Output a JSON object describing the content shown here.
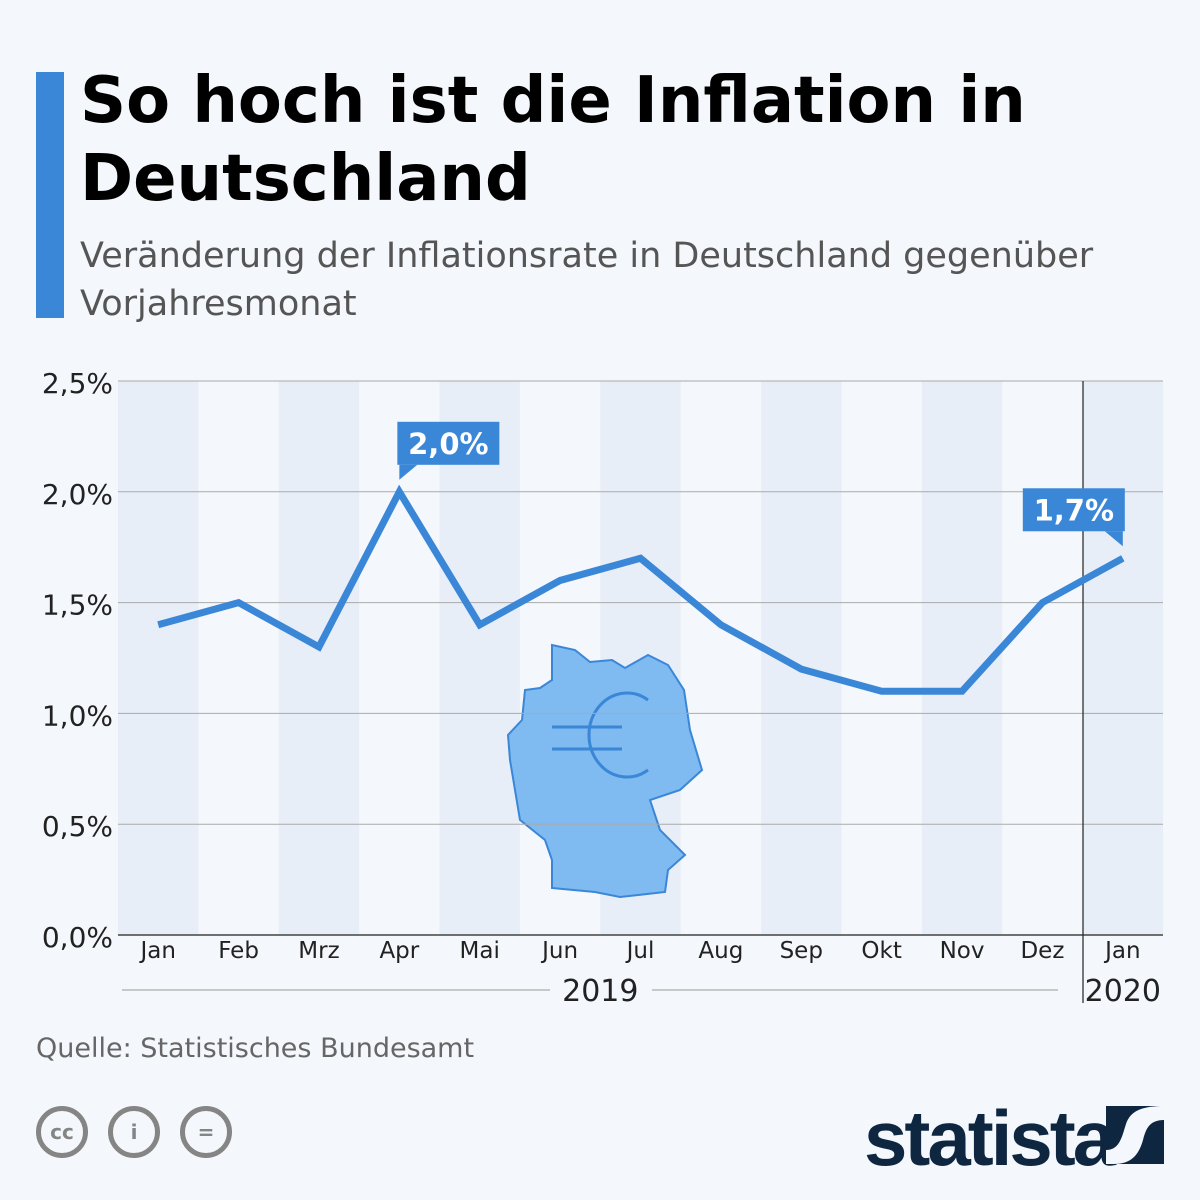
{
  "header": {
    "title": "So hoch ist die Inflation in Deutschland",
    "subtitle": "Veränderung der Inflationsrate in Deutschland gegenüber Vorjahresmonat"
  },
  "chart_data": {
    "type": "line",
    "title": "So hoch ist die Inflation in Deutschland",
    "categories": [
      "Jan",
      "Feb",
      "Mrz",
      "Apr",
      "Mai",
      "Jun",
      "Jul",
      "Aug",
      "Sep",
      "Okt",
      "Nov",
      "Dez",
      "Jan"
    ],
    "years": [
      {
        "label": "2019",
        "from": 0,
        "to": 11
      },
      {
        "label": "2020",
        "from": 12,
        "to": 12
      }
    ],
    "values": [
      1.4,
      1.5,
      1.3,
      2.0,
      1.4,
      1.6,
      1.7,
      1.4,
      1.2,
      1.1,
      1.1,
      1.5,
      1.7
    ],
    "yticks": [
      "0,0%",
      "0,5%",
      "1,0%",
      "1,5%",
      "2,0%",
      "2,5%"
    ],
    "ylim": [
      0,
      2.5
    ],
    "annotations": [
      {
        "index": 3,
        "label": "2,0%"
      },
      {
        "index": 12,
        "label": "1,7%"
      }
    ],
    "line_color": "#3a87d8",
    "grid": true
  },
  "footer": {
    "source": "Quelle: Statistisches Bundesamt",
    "brand": "statista",
    "license_icons": [
      "cc-icon",
      "by-icon",
      "nd-icon"
    ]
  }
}
